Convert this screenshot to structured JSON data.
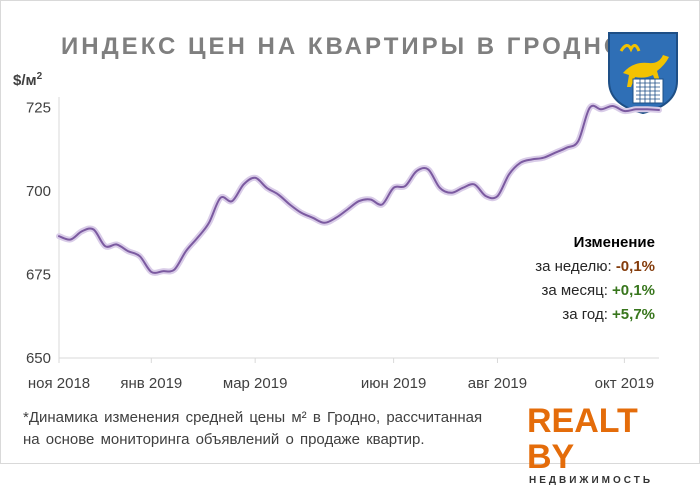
{
  "title": "ИНДЕКС ЦЕН НА КВАРТИРЫ В ГРОДНО",
  "unit": "$/м",
  "unit_sup": "2",
  "change": {
    "header": "Изменение",
    "week_label": "за неделю:",
    "week_value": "-0,1%",
    "month_label": "за месяц:",
    "month_value": "+0,1%",
    "year_label": "за год:",
    "year_value": "+5,7%"
  },
  "footnote_line1": "*Динамика изменения средней цены м² в Гродно, рассчитанная",
  "footnote_line2": "на основе мониторинга объявлений о продаже квартир.",
  "logo": {
    "main": "REALT BY",
    "sub": "НЕДВИЖИМОСТЬ"
  },
  "colors": {
    "line": "#7b5aa0",
    "line_glow": "#d9cce8",
    "grid": "#d9d9d9",
    "accent": "#e46c0a",
    "negative": "#843c0c",
    "positive": "#38761d"
  },
  "chart_data": {
    "type": "line",
    "title": "ИНДЕКС ЦЕН НА КВАРТИРЫ В ГРОДНО",
    "ylabel": "$/м²",
    "xlabel": "",
    "ylim": [
      650,
      727
    ],
    "yticks": [
      650,
      675,
      700,
      725
    ],
    "xtick_labels": [
      "ноя 2018",
      "янв 2019",
      "мар 2019",
      "июн 2019",
      "авг 2019",
      "окт 2019"
    ],
    "xtick_weeks": [
      0,
      8,
      17,
      29,
      38,
      49
    ],
    "x_range_weeks": [
      0,
      52
    ],
    "grid": false,
    "series": [
      {
        "values": [
          686.5,
          685.5,
          688,
          688.5,
          683.5,
          684,
          682,
          680.5,
          675.8,
          676,
          676.5,
          682,
          686,
          690.5,
          698,
          697,
          702,
          704,
          701,
          699,
          696,
          693.5,
          692,
          690.5,
          692,
          694.5,
          697,
          697.5,
          696,
          701,
          701.5,
          706,
          706.5,
          701,
          699.5,
          701,
          702,
          698.5,
          698.5,
          705,
          708.5,
          709.5,
          710,
          711.5,
          713,
          715,
          725,
          724.5,
          725.5,
          724,
          724.5,
          724.5,
          724.3
        ]
      }
    ]
  }
}
